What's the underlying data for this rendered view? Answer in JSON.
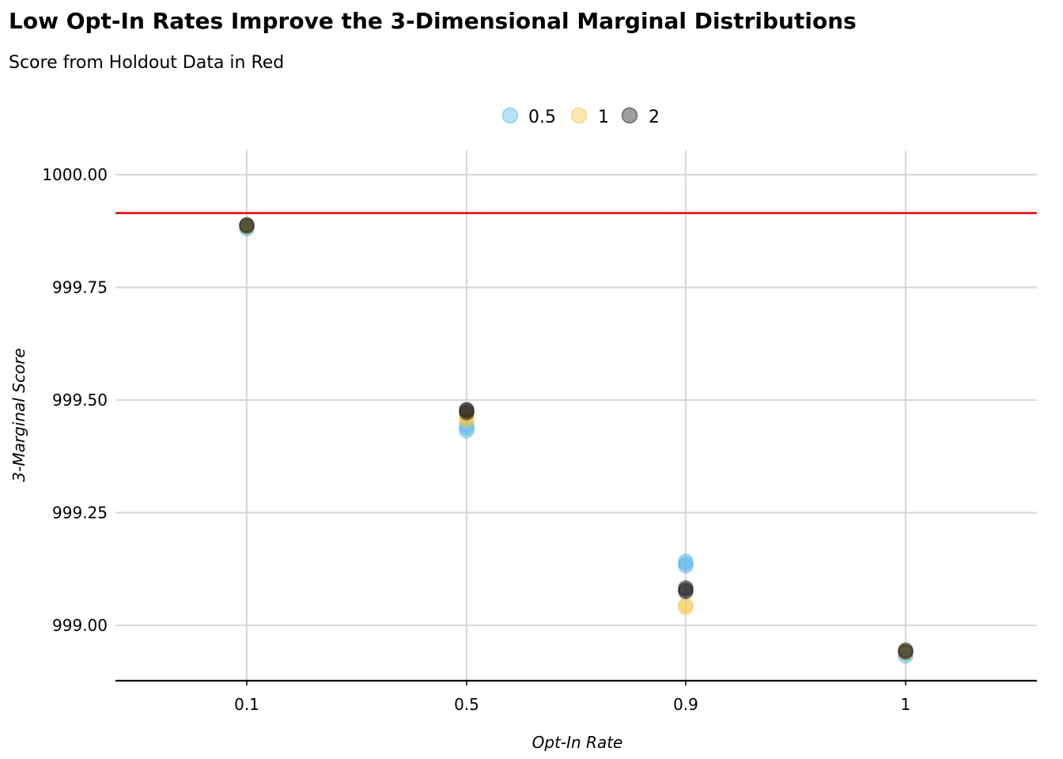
{
  "chart_data": {
    "type": "scatter",
    "title": "Low Opt-In Rates Improve the 3-Dimensional Marginal Distributions",
    "subtitle": "Score from Holdout Data in Red",
    "xlabel": "Opt-In Rate",
    "ylabel": "3-Marginal Score",
    "categories": [
      "0.1",
      "0.5",
      "0.9",
      "1"
    ],
    "ylim": [
      998.88,
      1000.055
    ],
    "yticks": [
      999.0,
      999.25,
      999.5,
      999.75,
      1000.0
    ],
    "ytick_labels": [
      "999.00",
      "999.25",
      "999.50",
      "999.75",
      "1000.00"
    ],
    "reference_line": {
      "value": 999.915,
      "color": "#e00000"
    },
    "grid": true,
    "legend_position": "top",
    "series": [
      {
        "name": "0.5",
        "color": "#56b4e9",
        "points": [
          {
            "x": "0.1",
            "y": 999.88
          },
          {
            "x": "0.1",
            "y": 999.884
          },
          {
            "x": "0.5",
            "y": 999.432
          },
          {
            "x": "0.5",
            "y": 999.438
          },
          {
            "x": "0.5",
            "y": 999.445
          },
          {
            "x": "0.9",
            "y": 999.132
          },
          {
            "x": "0.9",
            "y": 999.137
          },
          {
            "x": "0.9",
            "y": 999.142
          },
          {
            "x": "1",
            "y": 998.932
          },
          {
            "x": "1",
            "y": 998.938
          }
        ]
      },
      {
        "name": "1",
        "color": "#f5c542",
        "points": [
          {
            "x": "0.1",
            "y": 999.885
          },
          {
            "x": "0.1",
            "y": 999.888
          },
          {
            "x": "0.5",
            "y": 999.455
          },
          {
            "x": "0.5",
            "y": 999.462
          },
          {
            "x": "0.5",
            "y": 999.468
          },
          {
            "x": "0.9",
            "y": 999.04
          },
          {
            "x": "0.9",
            "y": 999.045
          },
          {
            "x": "1",
            "y": 998.94
          },
          {
            "x": "1",
            "y": 998.943
          }
        ]
      },
      {
        "name": "2",
        "color": "#1a1a1a",
        "points": [
          {
            "x": "0.1",
            "y": 999.886
          },
          {
            "x": "0.1",
            "y": 999.889
          },
          {
            "x": "0.5",
            "y": 999.472
          },
          {
            "x": "0.5",
            "y": 999.476
          },
          {
            "x": "0.5",
            "y": 999.479
          },
          {
            "x": "0.9",
            "y": 999.075
          },
          {
            "x": "0.9",
            "y": 999.079
          },
          {
            "x": "0.9",
            "y": 999.083
          },
          {
            "x": "1",
            "y": 998.941
          },
          {
            "x": "1",
            "y": 998.945
          }
        ]
      }
    ]
  }
}
